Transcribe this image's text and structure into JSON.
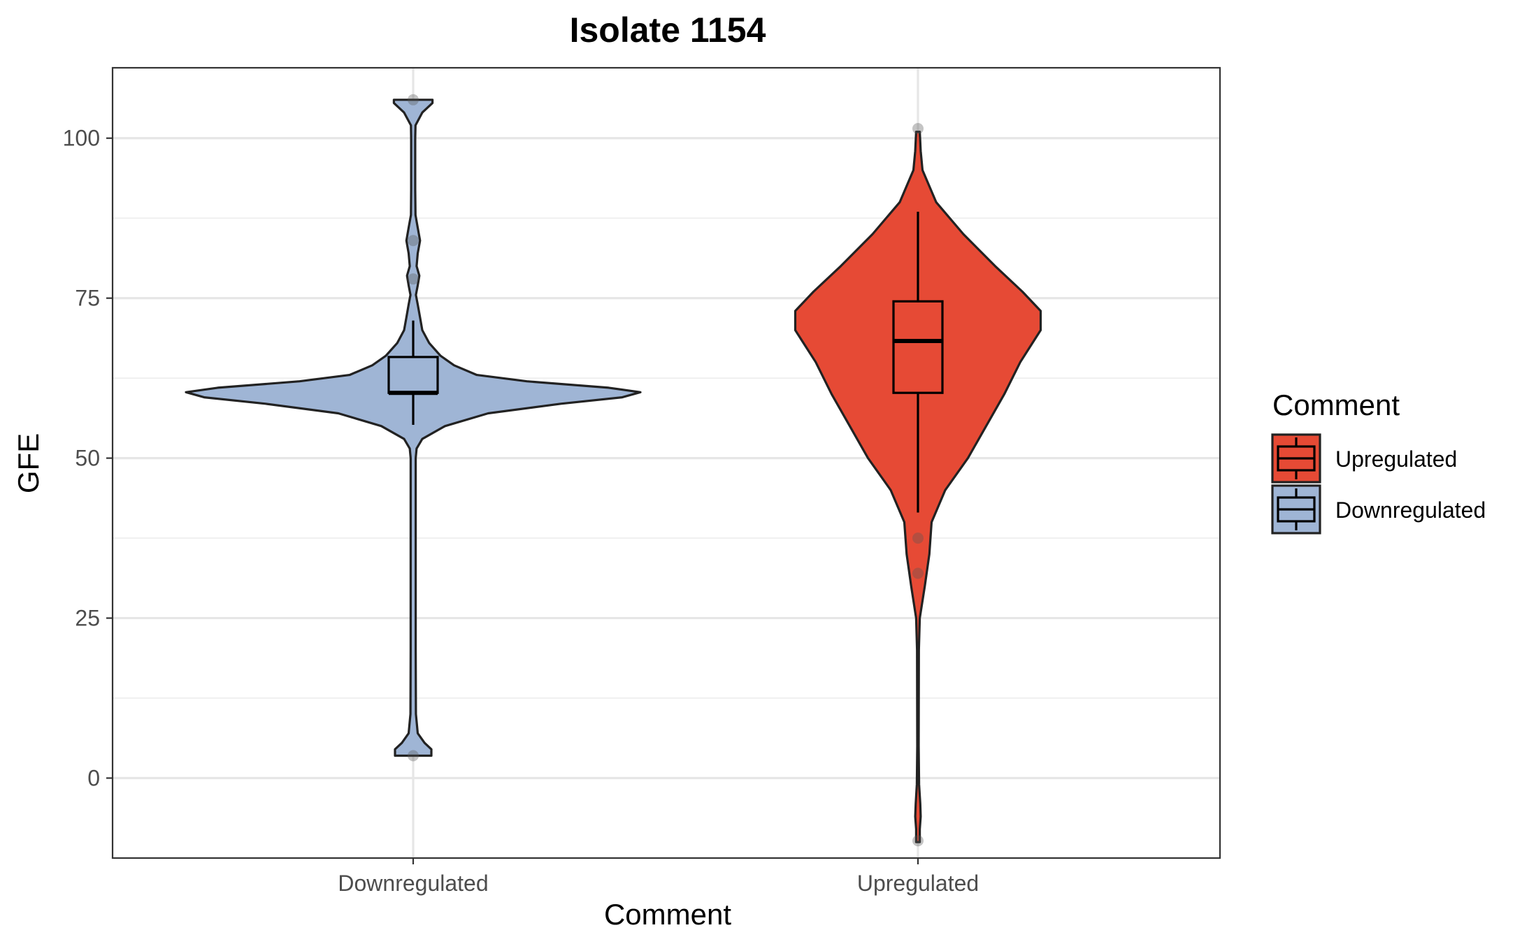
{
  "chart_data": {
    "type": "violin",
    "title": "Isolate 1154",
    "xlabel": "Comment",
    "ylabel": "GFE",
    "categories": [
      "Downregulated",
      "Upregulated"
    ],
    "ylim": [
      -12.5,
      111
    ],
    "yticks": [
      0,
      25,
      50,
      75,
      100
    ],
    "grid": true,
    "legend": {
      "title": "Comment",
      "position": "right",
      "entries": [
        "Upregulated",
        "Downregulated"
      ]
    },
    "colors": {
      "Downregulated": "#9fb5d5",
      "Upregulated": "#e64a35"
    },
    "series": [
      {
        "category": "Downregulated",
        "density_profile": [
          [
            3.5,
            0.08
          ],
          [
            4.5,
            0.08
          ],
          [
            5.5,
            0.05
          ],
          [
            7.0,
            0.02
          ],
          [
            10.0,
            0.012
          ],
          [
            20.0,
            0.011
          ],
          [
            40.0,
            0.011
          ],
          [
            50.0,
            0.011
          ],
          [
            51.5,
            0.015
          ],
          [
            53.0,
            0.04
          ],
          [
            55.0,
            0.14
          ],
          [
            57.0,
            0.33
          ],
          [
            58.5,
            0.65
          ],
          [
            59.5,
            0.92
          ],
          [
            60.3,
            1.0
          ],
          [
            61.0,
            0.86
          ],
          [
            62.0,
            0.5
          ],
          [
            63.0,
            0.28
          ],
          [
            64.5,
            0.18
          ],
          [
            66.0,
            0.12
          ],
          [
            68.0,
            0.07
          ],
          [
            70.0,
            0.04
          ],
          [
            72.0,
            0.03
          ],
          [
            74.0,
            0.02
          ],
          [
            75.5,
            0.012
          ],
          [
            77.0,
            0.02
          ],
          [
            78.5,
            0.027
          ],
          [
            80.0,
            0.015
          ],
          [
            82.0,
            0.02
          ],
          [
            84.0,
            0.03
          ],
          [
            86.0,
            0.02
          ],
          [
            88.0,
            0.01
          ],
          [
            92.0,
            0.009
          ],
          [
            100.0,
            0.009
          ],
          [
            102.0,
            0.01
          ],
          [
            104.0,
            0.04
          ],
          [
            105.5,
            0.085
          ],
          [
            106.0,
            0.085
          ]
        ],
        "box": {
          "q1": 60.2,
          "median": 60.2,
          "q3": 65.8,
          "whisker_low": 55.2,
          "whisker_high": 71.5
        },
        "outliers": [
          106,
          84,
          78,
          3.5
        ]
      },
      {
        "category": "Upregulated",
        "density_profile": [
          [
            -10.0,
            0.008
          ],
          [
            -8.0,
            0.008
          ],
          [
            -6.0,
            0.012
          ],
          [
            -4.0,
            0.01
          ],
          [
            -1.0,
            0.005
          ],
          [
            5.0,
            0.003
          ],
          [
            20.0,
            0.004
          ],
          [
            25.0,
            0.008
          ],
          [
            30.0,
            0.03
          ],
          [
            35.0,
            0.05
          ],
          [
            40.0,
            0.06
          ],
          [
            45.0,
            0.12
          ],
          [
            50.0,
            0.22
          ],
          [
            55.0,
            0.3
          ],
          [
            60.0,
            0.38
          ],
          [
            65.0,
            0.45
          ],
          [
            70.0,
            0.54
          ],
          [
            73.0,
            0.54
          ],
          [
            76.0,
            0.46
          ],
          [
            80.0,
            0.34
          ],
          [
            85.0,
            0.2
          ],
          [
            90.0,
            0.08
          ],
          [
            95.0,
            0.02
          ],
          [
            98.0,
            0.012
          ],
          [
            101.0,
            0.008
          ]
        ],
        "box": {
          "q1": 60.2,
          "median": 68.3,
          "q3": 74.5,
          "whisker_low": 41.5,
          "whisker_high": 88.5
        },
        "outliers": [
          101.5,
          37.5,
          32,
          -9.8
        ]
      }
    ]
  }
}
